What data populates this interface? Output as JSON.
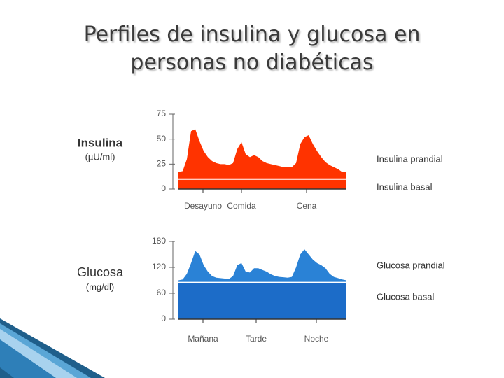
{
  "title": "Perfiles de insulina y glucosa en personas no diabéticas",
  "chart_data": [
    {
      "type": "area",
      "title": "Insulina",
      "unit": "(µU/ml)",
      "ylim": [
        0,
        75
      ],
      "yticks": [
        0,
        25,
        50,
        75
      ],
      "x_labels": [
        "Desayuno",
        "Comida",
        "Cena"
      ],
      "series": [
        {
          "name": "Insulina prandial",
          "color": "#ff3300",
          "values": [
            17,
            18,
            30,
            58,
            60,
            48,
            38,
            32,
            28,
            26,
            25,
            25,
            24,
            26,
            40,
            47,
            35,
            32,
            34,
            32,
            28,
            26,
            25,
            24,
            23,
            22,
            22,
            22,
            26,
            45,
            52,
            54,
            45,
            38,
            32,
            27,
            24,
            22,
            20,
            17,
            17
          ]
        },
        {
          "name": "Insulina basal",
          "color": "#ff3300",
          "values": [
            10,
            10,
            10,
            10,
            10,
            10,
            10,
            10,
            10,
            10,
            10,
            10,
            10,
            10,
            10,
            10,
            10,
            10,
            10,
            10,
            10,
            10,
            10,
            10,
            10,
            10,
            10,
            10,
            10,
            10,
            10,
            10,
            10,
            10,
            10,
            10,
            10,
            10,
            10,
            10,
            10
          ]
        }
      ]
    },
    {
      "type": "area",
      "title": "Glucosa",
      "unit": "(mg/dl)",
      "ylim": [
        0,
        180
      ],
      "yticks": [
        0,
        60,
        120,
        180
      ],
      "x_labels": [
        "Mañana",
        "Tarde",
        "Noche"
      ],
      "series": [
        {
          "name": "Glucosa prandial",
          "color": "#2a82d6",
          "values": [
            90,
            92,
            105,
            130,
            158,
            150,
            125,
            110,
            100,
            96,
            95,
            94,
            93,
            100,
            125,
            130,
            110,
            108,
            118,
            118,
            114,
            110,
            104,
            100,
            98,
            97,
            96,
            98,
            120,
            150,
            162,
            150,
            138,
            130,
            125,
            118,
            105,
            98,
            95,
            92,
            90
          ]
        },
        {
          "name": "Glucosa basal",
          "color": "#1c6cc8",
          "values": [
            85,
            85,
            85,
            85,
            85,
            85,
            85,
            85,
            85,
            85,
            85,
            85,
            85,
            85,
            85,
            85,
            85,
            85,
            85,
            85,
            85,
            85,
            85,
            85,
            85,
            85,
            85,
            85,
            85,
            85,
            85,
            85,
            85,
            85,
            85,
            85,
            85,
            85,
            85,
            85,
            85
          ]
        }
      ]
    }
  ]
}
